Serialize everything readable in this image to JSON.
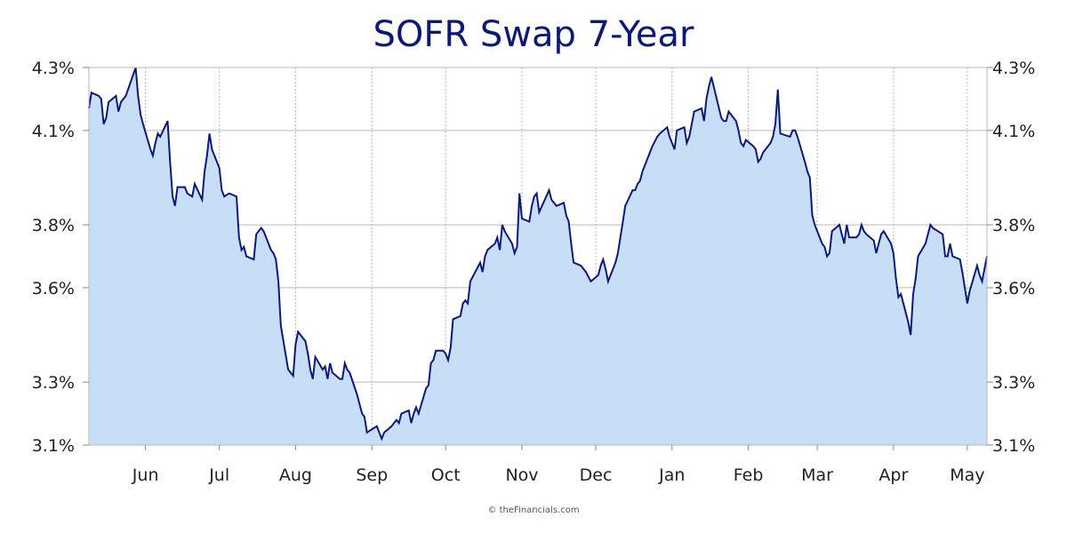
{
  "colors": {
    "line": "#0b1a78",
    "fill": "#c8def6",
    "grid": "#b8b8b8",
    "title": "#0b1a78"
  },
  "chart_data": {
    "type": "area",
    "title": "SOFR Swap 7-Year",
    "xlabel": "",
    "ylabel": "",
    "ylim": [
      3.1,
      4.3
    ],
    "y_ticks": [
      3.1,
      3.3,
      3.6,
      3.8,
      4.1,
      4.3
    ],
    "y_tick_labels": [
      "3.1%",
      "3.3%",
      "3.6%",
      "3.8%",
      "4.1%",
      "4.3%"
    ],
    "y_axis_sides": "left and right",
    "x_ticks": [
      {
        "label": "Jun",
        "x": "2024-06-01"
      },
      {
        "label": "Jul",
        "x": "2024-07-01"
      },
      {
        "label": "Aug",
        "x": "2024-08-01"
      },
      {
        "label": "Sep",
        "x": "2024-09-01"
      },
      {
        "label": "Oct",
        "x": "2024-10-01"
      },
      {
        "label": "Nov",
        "x": "2024-11-01"
      },
      {
        "label": "Dec",
        "x": "2024-12-01"
      },
      {
        "label": "Jan",
        "x": "2025-01-01"
      },
      {
        "label": "Feb",
        "x": "2025-02-01"
      },
      {
        "label": "Mar",
        "x": "2025-03-01"
      },
      {
        "label": "Apr",
        "x": "2025-04-01"
      },
      {
        "label": "May",
        "x": "2025-05-01"
      }
    ],
    "xlim": [
      "2024-05-09",
      "2025-05-09"
    ],
    "grid": true,
    "series": [
      {
        "x": [
          "2024-05-09",
          "2024-05-10",
          "2024-05-13",
          "2024-05-14",
          "2024-05-15",
          "2024-05-16",
          "2024-05-17",
          "2024-05-20",
          "2024-05-21",
          "2024-05-22",
          "2024-05-23",
          "2024-05-24",
          "2024-05-28",
          "2024-05-29",
          "2024-05-30",
          "2024-05-31",
          "2024-06-03",
          "2024-06-04",
          "2024-06-05",
          "2024-06-06",
          "2024-06-07",
          "2024-06-10",
          "2024-06-11",
          "2024-06-12",
          "2024-06-13",
          "2024-06-14",
          "2024-06-17",
          "2024-06-18",
          "2024-06-20",
          "2024-06-21",
          "2024-06-24",
          "2024-06-25",
          "2024-06-26",
          "2024-06-27",
          "2024-06-28",
          "2024-07-01",
          "2024-07-02",
          "2024-07-03",
          "2024-07-05",
          "2024-07-08",
          "2024-07-09",
          "2024-07-10",
          "2024-07-11",
          "2024-07-12",
          "2024-07-15",
          "2024-07-16",
          "2024-07-17",
          "2024-07-18",
          "2024-07-19",
          "2024-07-22",
          "2024-07-23",
          "2024-07-24",
          "2024-07-25",
          "2024-07-26",
          "2024-07-29",
          "2024-07-30",
          "2024-07-31",
          "2024-08-01",
          "2024-08-02",
          "2024-08-05",
          "2024-08-06",
          "2024-08-07",
          "2024-08-08",
          "2024-08-09",
          "2024-08-12",
          "2024-08-13",
          "2024-08-14",
          "2024-08-15",
          "2024-08-16",
          "2024-08-19",
          "2024-08-20",
          "2024-08-21",
          "2024-08-22",
          "2024-08-23",
          "2024-08-26",
          "2024-08-27",
          "2024-08-28",
          "2024-08-29",
          "2024-08-30",
          "2024-09-03",
          "2024-09-04",
          "2024-09-05",
          "2024-09-06",
          "2024-09-09",
          "2024-09-10",
          "2024-09-11",
          "2024-09-12",
          "2024-09-13",
          "2024-09-16",
          "2024-09-17",
          "2024-09-18",
          "2024-09-19",
          "2024-09-20",
          "2024-09-23",
          "2024-09-24",
          "2024-09-25",
          "2024-09-26",
          "2024-09-27",
          "2024-09-30",
          "2024-10-01",
          "2024-10-02",
          "2024-10-03",
          "2024-10-04",
          "2024-10-07",
          "2024-10-08",
          "2024-10-09",
          "2024-10-10",
          "2024-10-11",
          "2024-10-15",
          "2024-10-16",
          "2024-10-17",
          "2024-10-18",
          "2024-10-21",
          "2024-10-22",
          "2024-10-23",
          "2024-10-24",
          "2024-10-25",
          "2024-10-28",
          "2024-10-29",
          "2024-10-30",
          "2024-10-31",
          "2024-11-01",
          "2024-11-04",
          "2024-11-05",
          "2024-11-06",
          "2024-11-07",
          "2024-11-08",
          "2024-11-12",
          "2024-11-13",
          "2024-11-14",
          "2024-11-15",
          "2024-11-18",
          "2024-11-19",
          "2024-11-20",
          "2024-11-21",
          "2024-11-22",
          "2024-11-25",
          "2024-11-26",
          "2024-11-27",
          "2024-11-29",
          "2024-12-02",
          "2024-12-03",
          "2024-12-04",
          "2024-12-05",
          "2024-12-06",
          "2024-12-09",
          "2024-12-10",
          "2024-12-11",
          "2024-12-12",
          "2024-12-13",
          "2024-12-16",
          "2024-12-17",
          "2024-12-18",
          "2024-12-19",
          "2024-12-20",
          "2024-12-23",
          "2024-12-24",
          "2024-12-26",
          "2024-12-27",
          "2024-12-30",
          "2024-12-31",
          "2025-01-02",
          "2025-01-03",
          "2025-01-06",
          "2025-01-07",
          "2025-01-08",
          "2025-01-10",
          "2025-01-13",
          "2025-01-14",
          "2025-01-15",
          "2025-01-16",
          "2025-01-17",
          "2025-01-21",
          "2025-01-22",
          "2025-01-23",
          "2025-01-24",
          "2025-01-27",
          "2025-01-28",
          "2025-01-29",
          "2025-01-30",
          "2025-01-31",
          "2025-02-03",
          "2025-02-04",
          "2025-02-05",
          "2025-02-06",
          "2025-02-07",
          "2025-02-10",
          "2025-02-11",
          "2025-02-12",
          "2025-02-13",
          "2025-02-14",
          "2025-02-18",
          "2025-02-19",
          "2025-02-20",
          "2025-02-21",
          "2025-02-24",
          "2025-02-25",
          "2025-02-26",
          "2025-02-27",
          "2025-02-28",
          "2025-03-03",
          "2025-03-04",
          "2025-03-05",
          "2025-03-06",
          "2025-03-07",
          "2025-03-10",
          "2025-03-11",
          "2025-03-12",
          "2025-03-13",
          "2025-03-14",
          "2025-03-17",
          "2025-03-18",
          "2025-03-19",
          "2025-03-20",
          "2025-03-21",
          "2025-03-24",
          "2025-03-25",
          "2025-03-26",
          "2025-03-27",
          "2025-03-28",
          "2025-03-31",
          "2025-04-01",
          "2025-04-02",
          "2025-04-03",
          "2025-04-04",
          "2025-04-07",
          "2025-04-08",
          "2025-04-09",
          "2025-04-10",
          "2025-04-11",
          "2025-04-14",
          "2025-04-15",
          "2025-04-16",
          "2025-04-17",
          "2025-04-21",
          "2025-04-22",
          "2025-04-23",
          "2025-04-24",
          "2025-04-25",
          "2025-04-28",
          "2025-04-29",
          "2025-04-30",
          "2025-05-01",
          "2025-05-02",
          "2025-05-05",
          "2025-05-06",
          "2025-05-07",
          "2025-05-08",
          "2025-05-09"
        ],
        "values": [
          4.17,
          4.22,
          4.21,
          4.2,
          4.12,
          4.14,
          4.19,
          4.21,
          4.16,
          4.19,
          4.2,
          4.21,
          4.3,
          4.21,
          4.15,
          4.12,
          4.04,
          4.02,
          4.06,
          4.09,
          4.08,
          4.13,
          4.0,
          3.89,
          3.86,
          3.92,
          3.92,
          3.9,
          3.89,
          3.93,
          3.88,
          3.97,
          4.02,
          4.09,
          4.04,
          3.98,
          3.91,
          3.89,
          3.9,
          3.89,
          3.76,
          3.72,
          3.73,
          3.7,
          3.69,
          3.77,
          3.78,
          3.79,
          3.78,
          3.72,
          3.71,
          3.69,
          3.62,
          3.48,
          3.34,
          3.33,
          3.32,
          3.42,
          3.46,
          3.43,
          3.39,
          3.34,
          3.31,
          3.38,
          3.34,
          3.35,
          3.31,
          3.36,
          3.33,
          3.31,
          3.31,
          3.36,
          3.34,
          3.33,
          3.26,
          3.23,
          3.2,
          3.19,
          3.14,
          3.16,
          3.14,
          3.12,
          3.14,
          3.16,
          3.17,
          3.18,
          3.17,
          3.2,
          3.21,
          3.17,
          3.2,
          3.22,
          3.2,
          3.28,
          3.29,
          3.36,
          3.37,
          3.4,
          3.4,
          3.39,
          3.37,
          3.41,
          3.5,
          3.51,
          3.55,
          3.56,
          3.55,
          3.62,
          3.68,
          3.65,
          3.7,
          3.72,
          3.74,
          3.76,
          3.72,
          3.8,
          3.78,
          3.74,
          3.71,
          3.73,
          3.9,
          3.82,
          3.81,
          3.86,
          3.89,
          3.9,
          3.84,
          3.91,
          3.88,
          3.87,
          3.86,
          3.87,
          3.83,
          3.81,
          3.74,
          3.68,
          3.67,
          3.66,
          3.65,
          3.62,
          3.64,
          3.67,
          3.69,
          3.66,
          3.62,
          3.68,
          3.71,
          3.76,
          3.81,
          3.86,
          3.91,
          3.91,
          3.93,
          3.94,
          3.97,
          4.03,
          4.05,
          4.08,
          4.09,
          4.11,
          4.08,
          4.04,
          4.1,
          4.11,
          4.06,
          4.08,
          4.16,
          4.17,
          4.13,
          4.2,
          4.24,
          4.27,
          4.14,
          4.13,
          4.13,
          4.16,
          4.13,
          4.1,
          4.06,
          4.05,
          4.07,
          4.05,
          4.04,
          4.0,
          4.01,
          4.03,
          4.06,
          4.08,
          4.12,
          4.23,
          4.09,
          4.08,
          4.1,
          4.1,
          4.08,
          4.0,
          3.97,
          3.95,
          3.83,
          3.8,
          3.74,
          3.73,
          3.7,
          3.71,
          3.78,
          3.8,
          3.77,
          3.74,
          3.8,
          3.76,
          3.76,
          3.77,
          3.8,
          3.78,
          3.77,
          3.75,
          3.71,
          3.74,
          3.77,
          3.78,
          3.74,
          3.71,
          3.63,
          3.57,
          3.58,
          3.49,
          3.45,
          3.58,
          3.63,
          3.7,
          3.74,
          3.77,
          3.8,
          3.79,
          3.77,
          3.7,
          3.7,
          3.74,
          3.7,
          3.69,
          3.65,
          3.6,
          3.55,
          3.59,
          3.67,
          3.64,
          3.62,
          3.66,
          3.7
        ]
      }
    ]
  },
  "watermark": "© theFinancials.com"
}
